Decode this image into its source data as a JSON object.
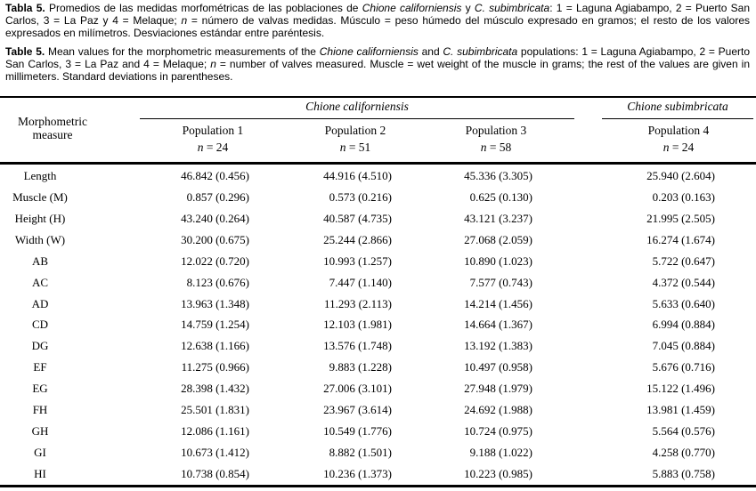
{
  "caption_es": {
    "label": "Tabla 5.",
    "seg1": " Promedios de las medidas morfométricas de las poblaciones de ",
    "italic1": "Chione californiensis",
    "seg2": " y ",
    "italic2": "C. subimbricata",
    "seg3": ": 1 = Laguna Agiabampo, 2 = Puerto San Carlos, 3 = La Paz y 4 = Melaque; ",
    "italic3": "n",
    "seg4": " = número de valvas medidas. Músculo = peso húmedo del músculo expresado en gramos; el resto de los valores expresados en milímetros. Desviaciones estándar entre paréntesis."
  },
  "caption_en": {
    "label": "Table 5.",
    "seg1": " Mean values for the morphometric measurements of the ",
    "italic1": "Chione californiensis",
    "seg2": " and ",
    "italic2": "C. subimbricata",
    "seg3": " populations: 1 = Laguna Agiabampo, 2 = Puerto San Carlos, 3 = La Paz and 4 = Melaque; ",
    "italic3": "n",
    "seg4": " = number of valves measured. Muscle = wet weight of the muscle in grams; the rest of the values are given in millimeters. Standard deviations in parentheses."
  },
  "table": {
    "measure_header_line1": "Morphometric",
    "measure_header_line2": "measure",
    "species1": "Chione californiensis",
    "species2": "Chione subimbricata",
    "n_symbol": "n",
    "populations": [
      {
        "label": "Population 1",
        "n_value": " = 24"
      },
      {
        "label": "Population 2",
        "n_value": " = 51"
      },
      {
        "label": "Population 3",
        "n_value": " = 58"
      },
      {
        "label": "Population 4",
        "n_value": " = 24"
      }
    ],
    "rows": [
      {
        "measure": "Length",
        "p1": "46.842 (0.456)",
        "p2": "44.916 (4.510)",
        "p3": "45.336 (3.305)",
        "p4": "25.940 (2.604)"
      },
      {
        "measure": "Muscle (M)",
        "p1": "0.857 (0.296)",
        "p2": "0.573 (0.216)",
        "p3": "0.625 (0.130)",
        "p4": "0.203 (0.163)"
      },
      {
        "measure": "Height (H)",
        "p1": "43.240 (0.264)",
        "p2": "40.587 (4.735)",
        "p3": "43.121 (3.237)",
        "p4": "21.995 (2.505)"
      },
      {
        "measure": "Width (W)",
        "p1": "30.200 (0.675)",
        "p2": "25.244 (2.866)",
        "p3": "27.068 (2.059)",
        "p4": "16.274 (1.674)"
      },
      {
        "measure": "AB",
        "p1": "12.022 (0.720)",
        "p2": "10.993 (1.257)",
        "p3": "10.890 (1.023)",
        "p4": "5.722 (0.647)"
      },
      {
        "measure": "AC",
        "p1": "8.123 (0.676)",
        "p2": "7.447 (1.140)",
        "p3": "7.577 (0.743)",
        "p4": "4.372 (0.544)"
      },
      {
        "measure": "AD",
        "p1": "13.963 (1.348)",
        "p2": "11.293 (2.113)",
        "p3": "14.214 (1.456)",
        "p4": "5.633 (0.640)"
      },
      {
        "measure": "CD",
        "p1": "14.759 (1.254)",
        "p2": "12.103 (1.981)",
        "p3": "14.664 (1.367)",
        "p4": "6.994 (0.884)"
      },
      {
        "measure": "DG",
        "p1": "12.638 (1.166)",
        "p2": "13.576 (1.748)",
        "p3": "13.192 (1.383)",
        "p4": "7.045 (0.884)"
      },
      {
        "measure": "EF",
        "p1": "11.275 (0.966)",
        "p2": "9.883 (1.228)",
        "p3": "10.497 (0.958)",
        "p4": "5.676 (0.716)"
      },
      {
        "measure": "EG",
        "p1": "28.398 (1.432)",
        "p2": "27.006 (3.101)",
        "p3": "27.948 (1.979)",
        "p4": "15.122 (1.496)"
      },
      {
        "measure": "FH",
        "p1": "25.501 (1.831)",
        "p2": "23.967 (3.614)",
        "p3": "24.692 (1.988)",
        "p4": "13.981 (1.459)"
      },
      {
        "measure": "GH",
        "p1": "12.086 (1.161)",
        "p2": "10.549 (1.776)",
        "p3": "10.724 (0.975)",
        "p4": "5.564 (0.576)"
      },
      {
        "measure": "GI",
        "p1": "10.673 (1.412)",
        "p2": "8.882 (1.501)",
        "p3": "9.188 (1.022)",
        "p4": "4.258 (0.770)"
      },
      {
        "measure": "HI",
        "p1": "10.738 (0.854)",
        "p2": "10.236 (1.373)",
        "p3": "10.223 (0.985)",
        "p4": "5.883 (0.758)"
      }
    ]
  }
}
